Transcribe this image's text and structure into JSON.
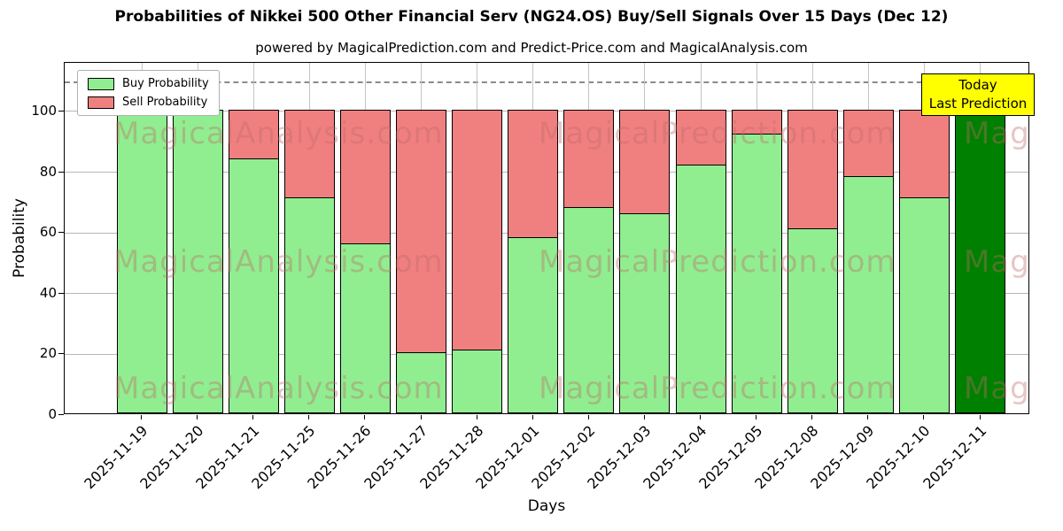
{
  "title": "Probabilities of Nikkei 500 Other Financial Serv (NG24.OS) Buy/Sell Signals Over 15 Days (Dec 12)",
  "subtitle": "powered by MagicalPrediction.com and Predict-Price.com and MagicalAnalysis.com",
  "legend": {
    "buy": "Buy Probability",
    "sell": "Sell Probability"
  },
  "today_box": {
    "line1": "Today",
    "line2": "Last Prediction",
    "bg": "#ffff00"
  },
  "axes": {
    "xlabel": "Days",
    "ylabel": "Probability",
    "yticks": [
      0,
      20,
      40,
      60,
      80,
      100
    ]
  },
  "watermarks": [
    "MagicalAnalysis.com",
    "MagicalPrediction.com"
  ],
  "colors": {
    "buy": "#90ee90",
    "sell": "#f08080",
    "last_bar": "#008000",
    "bar_edge": "#000000",
    "grid": "#b7b7b7",
    "today_bg": "#ffff00"
  },
  "chart_data": {
    "type": "bar",
    "stacked": true,
    "title": "Probabilities of Nikkei 500 Other Financial Serv (NG24.OS) Buy/Sell Signals Over 15 Days (Dec 12)",
    "xlabel": "Days",
    "ylabel": "Probability",
    "ylim": [
      0,
      116
    ],
    "yticks": [
      0,
      20,
      40,
      60,
      80,
      100
    ],
    "dashed_line_y": 110,
    "grid": true,
    "legend_position": "upper left",
    "categories": [
      "2025-11-19",
      "2025-11-20",
      "2025-11-21",
      "2025-11-25",
      "2025-11-26",
      "2025-11-27",
      "2025-11-28",
      "2025-12-01",
      "2025-12-02",
      "2025-12-03",
      "2025-12-04",
      "2025-12-05",
      "2025-12-08",
      "2025-12-09",
      "2025-12-10",
      "2025-12-11"
    ],
    "series": [
      {
        "name": "Buy Probability",
        "color": "#90ee90",
        "values": [
          100,
          100,
          84,
          71,
          56,
          20,
          21,
          58,
          68,
          66,
          82,
          92,
          61,
          78,
          71,
          100
        ]
      },
      {
        "name": "Sell Probability",
        "color": "#f08080",
        "values": [
          0,
          0,
          16,
          29,
          44,
          80,
          79,
          42,
          32,
          34,
          18,
          8,
          39,
          22,
          29,
          0
        ]
      }
    ],
    "last_bar": {
      "category": "2025-12-11",
      "color": "#008000",
      "annotation": "Today / Last Prediction"
    }
  }
}
